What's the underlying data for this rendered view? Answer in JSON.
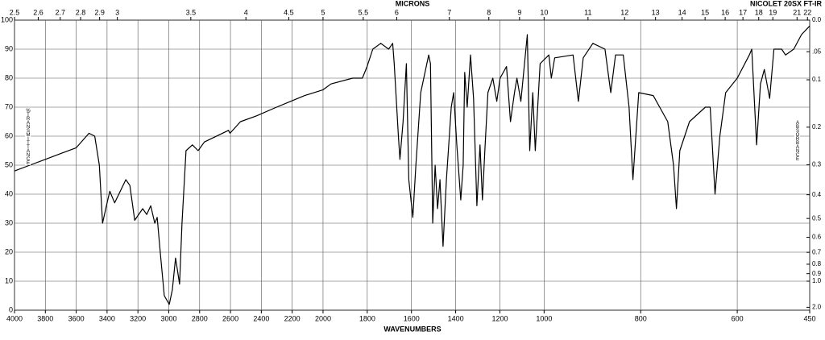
{
  "chart_data": {
    "type": "line",
    "x2label": "MICRONS",
    "xlabel": "WAVENUMBERS",
    "instrument": "NICOLET 20SX FT-IR",
    "ylabel": "%TRANSMITTANCE",
    "y2label": "ABSORBANCE",
    "xlim": [
      4000,
      450
    ],
    "xscale_breaks": [
      2000,
      1000
    ],
    "xticks": [
      4000,
      3800,
      3600,
      3400,
      3200,
      3000,
      2800,
      2600,
      2400,
      2200,
      2000,
      1800,
      1600,
      1400,
      1200,
      1000,
      800,
      600,
      450
    ],
    "x2ticks": [
      2.5,
      2.6,
      2.7,
      2.8,
      2.9,
      3,
      3.5,
      4,
      4.5,
      5,
      5.5,
      6,
      7,
      8,
      9,
      10,
      11,
      12,
      13,
      14,
      15,
      16,
      17,
      18,
      19,
      21,
      22
    ],
    "ylim": [
      0,
      100
    ],
    "yticks": [
      0,
      10,
      20,
      30,
      40,
      50,
      60,
      70,
      80,
      90,
      100
    ],
    "y2scale": "absorbance",
    "y2ticks": [
      {
        "value": 0,
        "label": "0.0"
      },
      {
        "value": 0.05,
        "label": ".05"
      },
      0.1,
      0.2,
      0.3,
      0.4,
      0.5,
      0.6,
      0.7,
      0.8,
      0.9,
      {
        "value": 1,
        "label": "1.0"
      },
      {
        "value": 2,
        "label": "2.0"
      }
    ],
    "grid": true,
    "series": [
      {
        "color": "#000000",
        "x": [
          4000,
          3900,
          3800,
          3700,
          3600,
          3517,
          3480,
          3450,
          3429,
          3400,
          3382,
          3351,
          3278,
          3252,
          3221,
          3169,
          3143,
          3117,
          3091,
          3075,
          3055,
          3029,
          2997,
          2977,
          2956,
          2930,
          2914,
          2888,
          2847,
          2810,
          2769,
          2613,
          2603,
          2535,
          2431,
          2301,
          2119,
          2000,
          1964,
          1866,
          1822,
          1801,
          1775,
          1739,
          1703,
          1685,
          1678,
          1659,
          1652,
          1638,
          1623,
          1612,
          1594,
          1580,
          1558,
          1522,
          1514,
          1504,
          1493,
          1482,
          1471,
          1457,
          1442,
          1420,
          1409,
          1395,
          1377,
          1366,
          1359,
          1348,
          1333,
          1319,
          1304,
          1290,
          1279,
          1268,
          1254,
          1232,
          1214,
          1199,
          1170,
          1152,
          1134,
          1123,
          1105,
          1076,
          1065,
          1051,
          1040,
          1018,
          990,
          985,
          978,
          940,
          929,
          919,
          899,
          874,
          862,
          852,
          836,
          824,
          816,
          804,
          774,
          744,
          732,
          726,
          719,
          699,
          666,
          656,
          646,
          636,
          624,
          600,
          575,
          570,
          560,
          552,
          544,
          533,
          524,
          508,
          500,
          483,
          467,
          450
        ],
        "values": [
          48,
          50,
          52,
          54,
          56,
          61,
          60,
          50,
          30,
          37,
          41,
          37,
          45,
          43,
          31,
          35,
          33,
          36,
          30,
          32,
          20,
          5,
          2,
          7,
          18,
          9,
          30,
          55,
          57,
          55,
          58,
          62,
          61,
          65,
          67,
          70,
          74,
          76,
          78,
          80,
          80,
          84,
          90,
          92,
          90,
          92,
          85,
          60,
          52,
          65,
          85,
          45,
          32,
          50,
          75,
          88,
          85,
          30,
          50,
          35,
          45,
          22,
          45,
          70,
          75,
          57,
          38,
          50,
          82,
          70,
          88,
          73,
          36,
          57,
          38,
          55,
          75,
          80,
          72,
          80,
          84,
          65,
          75,
          80,
          72,
          95,
          55,
          75,
          55,
          85,
          88,
          80,
          87,
          88,
          72,
          87,
          92,
          90,
          75,
          88,
          88,
          70,
          45,
          75,
          74,
          65,
          50,
          35,
          55,
          65,
          70,
          70,
          40,
          60,
          75,
          80,
          88,
          90,
          57,
          78,
          83,
          73,
          90,
          90,
          88,
          90,
          95,
          98
        ]
      }
    ]
  }
}
